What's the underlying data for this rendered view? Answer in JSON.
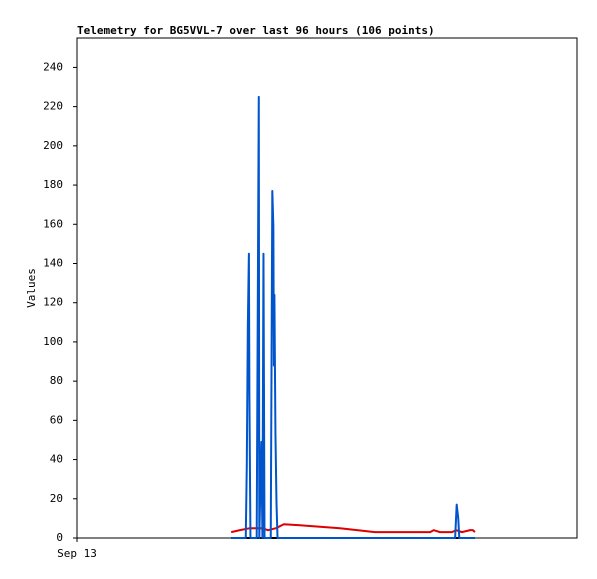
{
  "chart_data": {
    "type": "line",
    "title": "Telemetry for BG5VVL-7 over last 96 hours (106 points)",
    "y_label": "Values",
    "xlim": [
      0,
      96
    ],
    "xticks": [
      {
        "value": 0,
        "label": "Sep 13"
      }
    ],
    "ylim": [
      0,
      255
    ],
    "yticks": [
      0,
      20,
      40,
      60,
      80,
      100,
      120,
      140,
      160,
      180,
      200,
      220,
      240
    ],
    "grid": false,
    "series": [
      {
        "color": "#000000",
        "x": [
          29.6,
          76.4
        ],
        "values": [
          0,
          0
        ]
      },
      {
        "color": "#dd0000",
        "x": [
          29.6,
          31.3,
          33.2,
          35.5,
          36.7,
          38.2,
          39.7,
          42.8,
          50.5,
          57.2,
          67.8,
          68.5,
          69.7,
          72.0,
          72.8,
          73.9,
          75.5,
          76.0,
          76.4
        ],
        "values": [
          3,
          4,
          5,
          5,
          4,
          5,
          7,
          6.5,
          5,
          3,
          3,
          4,
          3,
          3,
          4,
          3,
          4,
          4,
          3
        ]
      },
      {
        "color": "#0055cc",
        "x": [
          29.6,
          32.4,
          32.6,
          32.8,
          33.0,
          33.1,
          33.3,
          34.5,
          34.7,
          34.9,
          35.0,
          35.2,
          35.4,
          35.6,
          35.8,
          36.0,
          37.2,
          37.5,
          37.7,
          37.8,
          37.9,
          38.1,
          38.3,
          38.5,
          72.6,
          72.9,
          73.2,
          73.4,
          76.4
        ],
        "values": [
          0,
          0,
          37,
          108,
          145,
          73,
          0,
          0,
          113,
          225,
          0,
          25,
          49,
          0,
          145,
          0,
          0,
          177,
          159,
          88,
          124,
          53,
          18,
          0,
          0,
          17,
          10,
          0,
          0
        ]
      }
    ]
  }
}
